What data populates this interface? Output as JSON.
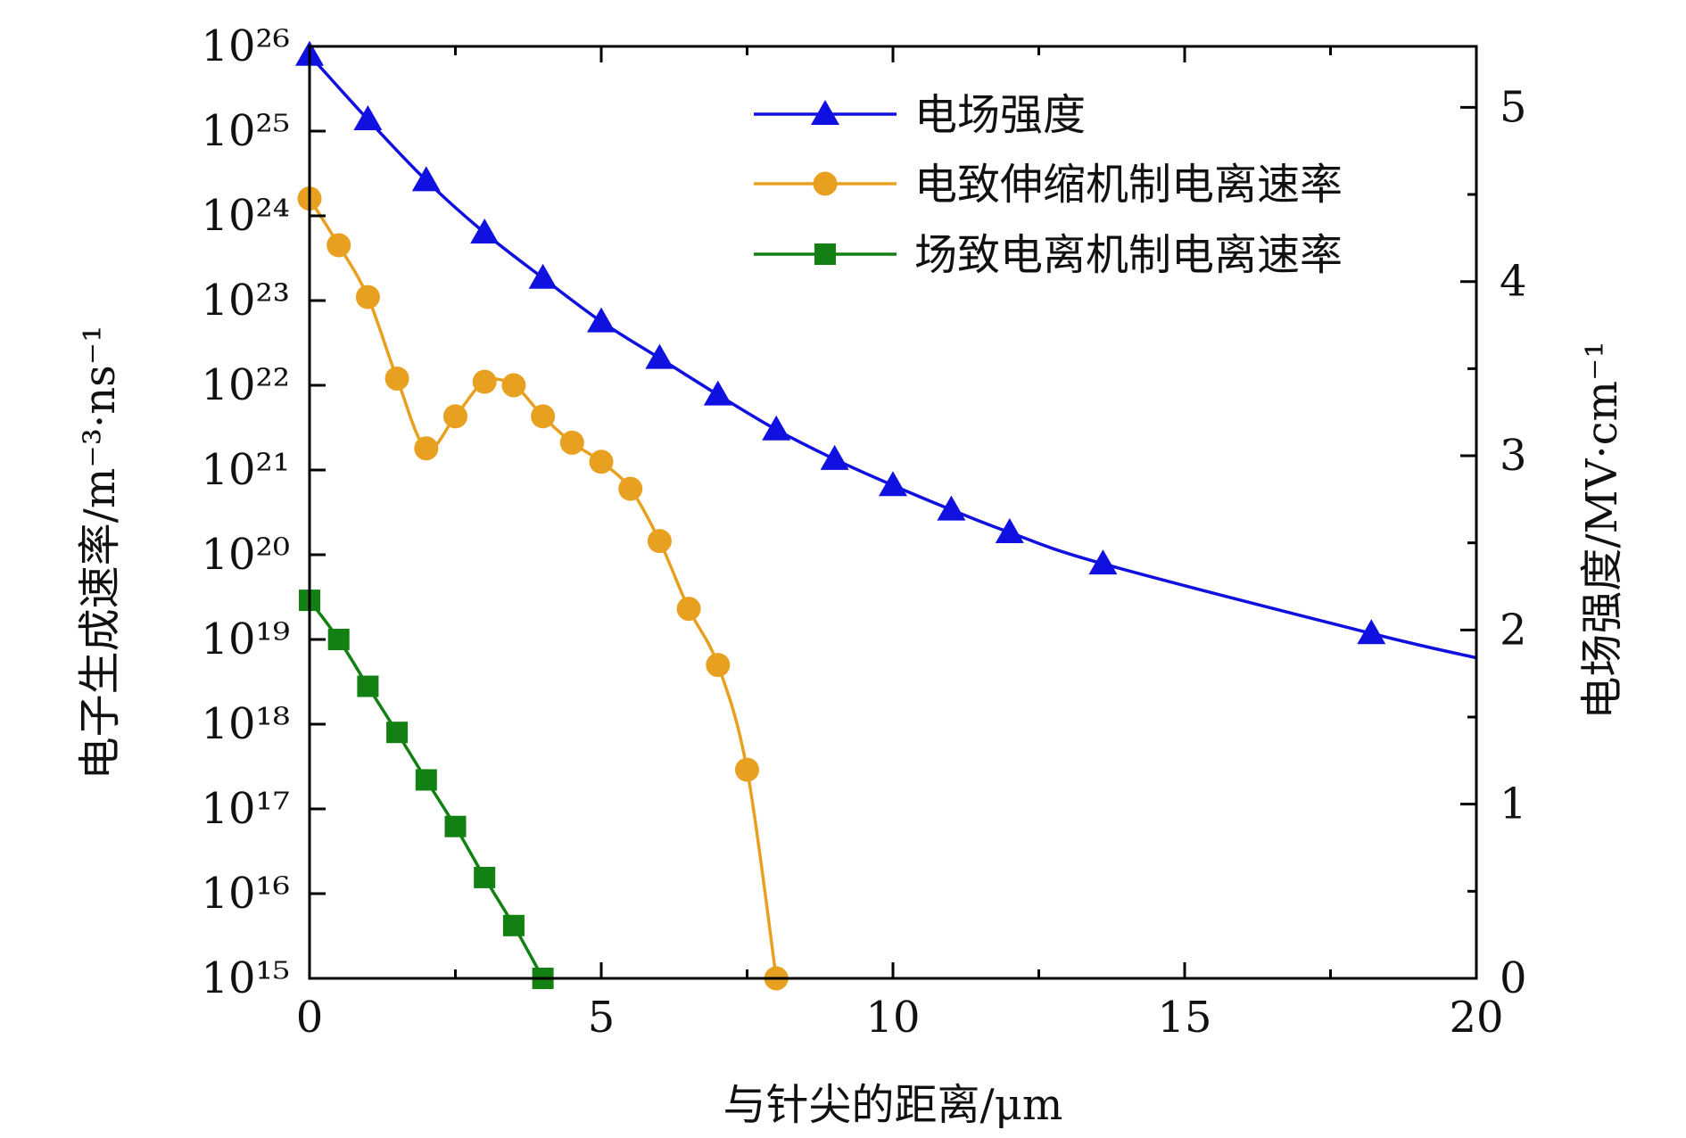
{
  "chart_data": {
    "type": "line",
    "xlabel": "与针尖的距离/μm",
    "ylabel": "电子生成速率/m⁻³·ns⁻¹",
    "ylabel_right": "电场强度/MV·cm⁻¹",
    "xlim": [
      0,
      20
    ],
    "ylim": [
      1000000000000000.0,
      1e+26
    ],
    "y_scale": "log",
    "ylim_right": [
      0,
      5.35
    ],
    "x_ticks": [
      "0",
      "5",
      "10",
      "15",
      "20"
    ],
    "y_ticks": [
      "10¹⁵",
      "10¹⁶",
      "10¹⁷",
      "10¹⁸",
      "10¹⁹",
      "10²⁰",
      "10²¹",
      "10²²",
      "10²³",
      "10²⁴",
      "10²⁵",
      "10²⁶"
    ],
    "y_ticks_right": [
      "0",
      "1",
      "2",
      "3",
      "4",
      "5"
    ],
    "legend_position": "top-right",
    "series": [
      {
        "name": "电场强度",
        "axis": "right",
        "color": "#1010e0",
        "marker": "triangle",
        "x": [
          0,
          1,
          2,
          3,
          4,
          5,
          6,
          7,
          8,
          9,
          10,
          11,
          12,
          13.6,
          18.2,
          20
        ],
        "y": [
          5.3,
          4.93,
          4.58,
          4.28,
          4.02,
          3.77,
          3.56,
          3.35,
          3.15,
          2.98,
          2.83,
          2.69,
          2.56,
          2.38,
          1.98,
          1.84
        ]
      },
      {
        "name": "电致伸缩机制电离速率",
        "axis": "left",
        "color": "#e8a020",
        "marker": "circle",
        "x": [
          0,
          0.5,
          1,
          1.5,
          2,
          2.5,
          3,
          3.5,
          4,
          4.5,
          5,
          5.5,
          6,
          6.5,
          7,
          7.5,
          8
        ],
        "y": [
          1.6e+24,
          4.5e+23,
          1.1e+23,
          1.2e+22,
          1.8e+21,
          4.3e+21,
          1.1e+22,
          1e+22,
          4.3e+21,
          2.1e+21,
          1.25e+21,
          6e+20,
          1.45e+20,
          2.3e+19,
          5e+18,
          2.9e+17,
          1000000000000000.0
        ]
      },
      {
        "name": "场致电离机制电离速率",
        "axis": "left",
        "color": "#128012",
        "marker": "square",
        "x": [
          0,
          0.5,
          1,
          1.5,
          2,
          2.5,
          3,
          3.5,
          4
        ],
        "y": [
          2.9e+19,
          1e+19,
          2.8e+18,
          8e+17,
          2.2e+17,
          6.2e+16,
          1.55e+16,
          4200000000000000.0,
          1000000000000000.0
        ]
      }
    ]
  }
}
